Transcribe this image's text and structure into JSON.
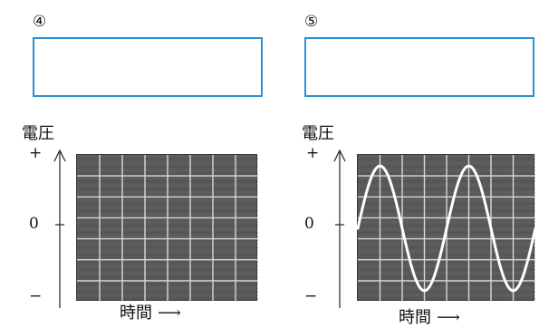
{
  "panels": [
    {
      "number": "④",
      "voltage_label": "電圧",
      "plus": "+",
      "zero": "0",
      "minus": "−",
      "time_label": "時間",
      "arrow": "⟶",
      "has_trace": false
    },
    {
      "number": "⑤",
      "voltage_label": "電圧",
      "plus": "+",
      "zero": "0",
      "minus": "−",
      "time_label": "時間",
      "arrow": "⟶",
      "has_trace": true,
      "trace": {
        "shape": "sine",
        "cycles": 2,
        "amplitude": 0.85
      }
    }
  ],
  "grid": {
    "columns": 8,
    "rows": 7
  },
  "colors": {
    "box_border": "#2a8fd6",
    "screen": "#5a5a5a",
    "grid_line": "#d8d8d8",
    "trace": "#ffffff"
  }
}
